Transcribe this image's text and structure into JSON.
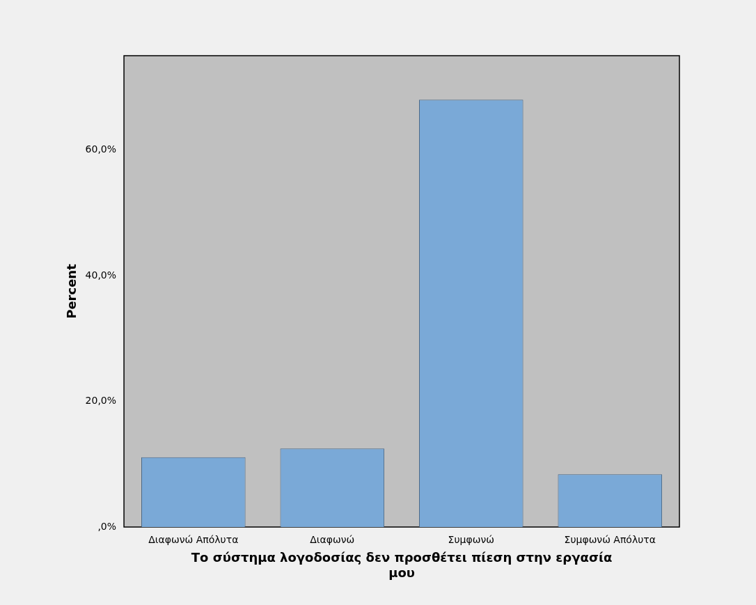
{
  "chart_data": {
    "type": "bar",
    "ylabel": "Percent",
    "xlabel": "Το σύστημα λογοδοσίας δεν προσθέτει πίεση στην εργασία μου",
    "categories": [
      "Διαφωνώ Απόλυτα",
      "Διαφωνώ",
      "Συμφωνώ",
      "Συμφωνώ Απόλυτα"
    ],
    "values": [
      11.1,
      12.5,
      68.0,
      8.4
    ],
    "color": "#7aa9d7",
    "ylim": [
      0,
      75
    ],
    "yticks": [
      {
        "value": 0,
        "label": ",0%"
      },
      {
        "value": 20,
        "label": "20,0%"
      },
      {
        "value": 40,
        "label": "40,0%"
      },
      {
        "value": 60,
        "label": "60,0%"
      }
    ],
    "grid": false,
    "legend": false
  }
}
